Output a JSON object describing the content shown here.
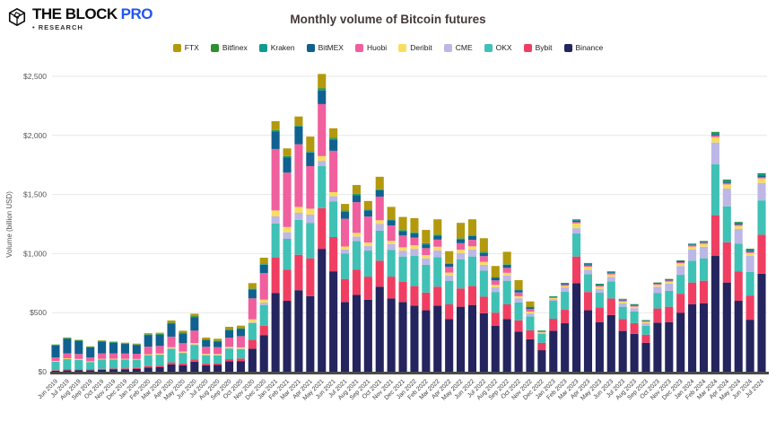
{
  "header": {
    "logo": {
      "brand": "THE BLOCK",
      "pro": "PRO",
      "sub": "• RESEARCH"
    }
  },
  "chart_data": {
    "type": "bar",
    "variant": "stacked",
    "title": "Monthly volume of Bitcoin futures",
    "ylabel": "Volume (billion USD)",
    "xlabel": "",
    "unit": "billion USD",
    "ylim": [
      0,
      2500
    ],
    "y_ticks": [
      "$0",
      "$500",
      "$1,000",
      "$1,500",
      "$2,000",
      "$2,500"
    ],
    "grid": "horizontal",
    "legend_position": "top",
    "stack_order": "reverse-of-legend (Binance at bottom, FTX on top)",
    "x_label_rotation": -45,
    "categories": [
      "Jun 2019",
      "Jul 2019",
      "Aug 2019",
      "Sep 2019",
      "Oct 2019",
      "Nov 2019",
      "Dec 2019",
      "Jan 2020",
      "Feb 2020",
      "Mar 2020",
      "Apr 2020",
      "May 2020",
      "Jun 2020",
      "Jul 2020",
      "Aug 2020",
      "Sep 2020",
      "Oct 2020",
      "Nov 2020",
      "Dec 2020",
      "Jan 2021",
      "Feb 2021",
      "Mar 2021",
      "Apr 2021",
      "May 2021",
      "Jun 2021",
      "Jul 2021",
      "Aug 2021",
      "Sep 2021",
      "Oct 2021",
      "Nov 2021",
      "Dec 2021",
      "Jan 2022",
      "Feb 2022",
      "Mar 2022",
      "Apr 2022",
      "May 2022",
      "Jun 2022",
      "Jul 2022",
      "Aug 2022",
      "Sep 2022",
      "Oct 2022",
      "Nov 2022",
      "Dec 2022",
      "Jan 2023",
      "Feb 2023",
      "Mar 2023",
      "Apr 2023",
      "May 2023",
      "Jun 2023",
      "Jul 2023",
      "Aug 2023",
      "Sep 2023",
      "Oct 2023",
      "Nov 2023",
      "Dec 2023",
      "Jan 2024",
      "Feb 2024",
      "Mar 2024",
      "Apr 2024",
      "May 2024",
      "Jun 2024",
      "Jul 2024"
    ],
    "series": [
      {
        "name": "FTX",
        "color": "#b3990d",
        "values": [
          0,
          3,
          3,
          3,
          4,
          4,
          4,
          5,
          8,
          10,
          18,
          16,
          20,
          15,
          15,
          20,
          20,
          45,
          50,
          75,
          65,
          75,
          125,
          120,
          80,
          55,
          75,
          70,
          105,
          105,
          110,
          120,
          112,
          128,
          99,
          130,
          132,
          116,
          94,
          105,
          79,
          45,
          0,
          0,
          0,
          0,
          0,
          0,
          0,
          0,
          0,
          0,
          0,
          0,
          0,
          0,
          0,
          0,
          0,
          0,
          0,
          0
        ]
      },
      {
        "name": "Bitfinex",
        "color": "#2f8f2f",
        "values": [
          5,
          5,
          5,
          4,
          4,
          4,
          4,
          4,
          5,
          5,
          6,
          5,
          7,
          5,
          5,
          6,
          5,
          5,
          5,
          5,
          5,
          5,
          5,
          10,
          7,
          5,
          5,
          5,
          5,
          5,
          5,
          5,
          5,
          5,
          4,
          5,
          5,
          4,
          3,
          3,
          3,
          2,
          2,
          2,
          3,
          5,
          5,
          3,
          4,
          3,
          3,
          2,
          3,
          3,
          4,
          4,
          4,
          8,
          8,
          6,
          8,
          8
        ]
      },
      {
        "name": "Kraken",
        "color": "#0f9b8e",
        "values": [
          2,
          2,
          2,
          2,
          2,
          2,
          2,
          2,
          2,
          2,
          3,
          3,
          4,
          3,
          3,
          4,
          4,
          4,
          5,
          5,
          5,
          5,
          5,
          10,
          8,
          5,
          5,
          5,
          5,
          5,
          5,
          5,
          5,
          5,
          4,
          5,
          5,
          4,
          3,
          3,
          3,
          2,
          2,
          2,
          4,
          6,
          5,
          4,
          4,
          4,
          3,
          2,
          3,
          3,
          4,
          4,
          4,
          10,
          9,
          8,
          8,
          12
        ]
      },
      {
        "name": "BitMEX",
        "color": "#10618f",
        "values": [
          102,
          124,
          110,
          85,
          100,
          90,
          82,
          75,
          99,
          95,
          110,
          82,
          112,
          55,
          48,
          62,
          60,
          75,
          70,
          150,
          130,
          150,
          115,
          115,
          95,
          60,
          60,
          52,
          53,
          42,
          37,
          35,
          32,
          34,
          26,
          32,
          32,
          28,
          22,
          25,
          19,
          14,
          4,
          4,
          7,
          12,
          10,
          8,
          9,
          7,
          7,
          5,
          6,
          7,
          8,
          8,
          7,
          12,
          12,
          10,
          10,
          14
        ]
      },
      {
        "name": "Huobi",
        "color": "#f05f9e",
        "values": [
          30,
          42,
          42,
          33,
          46,
          46,
          45,
          44,
          64,
          64,
          90,
          70,
          105,
          60,
          58,
          78,
          95,
          177,
          225,
          520,
          460,
          530,
          360,
          440,
          350,
          235,
          260,
          220,
          200,
          130,
          100,
          65,
          58,
          60,
          48,
          55,
          55,
          48,
          38,
          42,
          32,
          24,
          6,
          7,
          12,
          12,
          12,
          10,
          10,
          9,
          8,
          6,
          8,
          9,
          10,
          10,
          10,
          15,
          12,
          10,
          10,
          10
        ]
      },
      {
        "name": "Deribit",
        "color": "#f8dd60",
        "values": [
          6,
          7,
          7,
          6,
          6,
          6,
          6,
          6,
          8,
          8,
          10,
          9,
          12,
          8,
          8,
          10,
          10,
          25,
          25,
          50,
          45,
          50,
          50,
          40,
          35,
          25,
          30,
          28,
          32,
          28,
          28,
          30,
          28,
          30,
          24,
          28,
          28,
          25,
          20,
          22,
          17,
          13,
          5,
          8,
          12,
          40,
          25,
          18,
          20,
          14,
          13,
          10,
          15,
          18,
          22,
          24,
          24,
          45,
          35,
          25,
          25,
          38
        ]
      },
      {
        "name": "CME",
        "color": "#bcb7e6",
        "values": [
          0,
          0,
          0,
          0,
          0,
          0,
          0,
          0,
          0,
          2,
          3,
          3,
          4,
          3,
          3,
          4,
          4,
          8,
          20,
          60,
          55,
          60,
          70,
          45,
          45,
          35,
          40,
          40,
          55,
          50,
          50,
          60,
          55,
          58,
          45,
          55,
          58,
          50,
          40,
          45,
          35,
          27,
          8,
          15,
          38,
          45,
          38,
          32,
          38,
          30,
          28,
          24,
          55,
          60,
          75,
          95,
          98,
          185,
          150,
          125,
          135,
          148
        ]
      },
      {
        "name": "OKX",
        "color": "#3fc1b5",
        "values": [
          72,
          88,
          80,
          63,
          78,
          77,
          74,
          71,
          92,
          92,
          115,
          90,
          122,
          72,
          68,
          90,
          80,
          140,
          175,
          290,
          260,
          295,
          300,
          355,
          300,
          215,
          240,
          220,
          255,
          225,
          215,
          255,
          235,
          250,
          200,
          245,
          250,
          220,
          175,
          200,
          152,
          118,
          76,
          152,
          152,
          195,
          150,
          125,
          145,
          105,
          98,
          75,
          130,
          135,
          160,
          185,
          190,
          430,
          305,
          235,
          200,
          290
        ]
      },
      {
        "name": "Bybit",
        "color": "#f03e62",
        "values": [
          5,
          7,
          7,
          6,
          8,
          8,
          8,
          8,
          12,
          12,
          17,
          14,
          20,
          13,
          13,
          18,
          22,
          76,
          80,
          300,
          265,
          300,
          320,
          345,
          290,
          195,
          215,
          195,
          220,
          185,
          170,
          165,
          150,
          160,
          125,
          155,
          160,
          140,
          110,
          125,
          95,
          75,
          63,
          101,
          114,
          225,
          155,
          125,
          140,
          100,
          92,
          68,
          120,
          130,
          160,
          185,
          190,
          345,
          340,
          250,
          205,
          330
        ]
      },
      {
        "name": "Binance",
        "color": "#24245f",
        "values": [
          8,
          12,
          14,
          13,
          17,
          19,
          21,
          23,
          36,
          40,
          62,
          55,
          85,
          55,
          58,
          88,
          90,
          195,
          310,
          665,
          600,
          690,
          640,
          1040,
          850,
          590,
          650,
          610,
          720,
          620,
          590,
          560,
          520,
          560,
          445,
          550,
          565,
          495,
          390,
          445,
          340,
          275,
          182,
          347,
          410,
          750,
          520,
          420,
          480,
          345,
          320,
          245,
          415,
          420,
          500,
          570,
          580,
          980,
          755,
          600,
          440,
          830
        ]
      }
    ]
  }
}
